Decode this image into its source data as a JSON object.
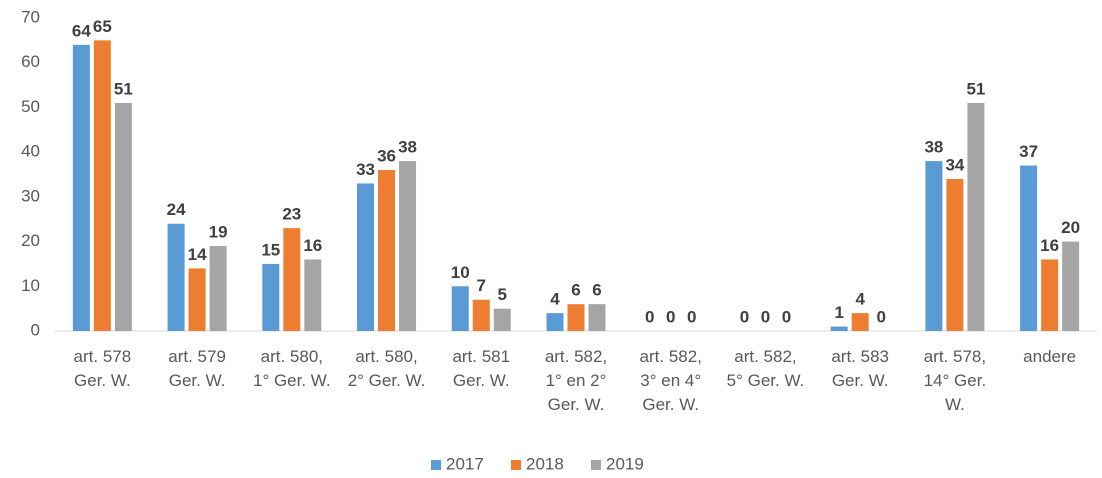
{
  "chart_data": {
    "type": "bar",
    "categories": [
      "art. 578\nGer. W.",
      "art. 579\nGer. W.",
      "art. 580,\n1° Ger. W.",
      "art. 580,\n2° Ger. W.",
      "art. 581\nGer. W.",
      "art. 582,\n1° en 2°\nGer. W.",
      "art. 582,\n3° en 4°\nGer. W.",
      "art. 582,\n5° Ger. W.",
      "art. 583\nGer. W.",
      "art. 578,\n14° Ger.\nW.",
      "andere"
    ],
    "series": [
      {
        "name": "2017",
        "color": "#5b9bd5",
        "values": [
          64,
          24,
          15,
          33,
          10,
          4,
          0,
          0,
          1,
          38,
          37
        ]
      },
      {
        "name": "2018",
        "color": "#ed7d31",
        "values": [
          65,
          14,
          23,
          36,
          7,
          6,
          0,
          0,
          4,
          34,
          16
        ]
      },
      {
        "name": "2019",
        "color": "#a5a5a5",
        "values": [
          51,
          19,
          16,
          38,
          5,
          6,
          0,
          0,
          0,
          51,
          20
        ]
      }
    ],
    "ylim": [
      0,
      70
    ],
    "yticks": [
      0,
      10,
      20,
      30,
      40,
      50,
      60,
      70
    ],
    "grid": false,
    "legend": "bottom"
  }
}
